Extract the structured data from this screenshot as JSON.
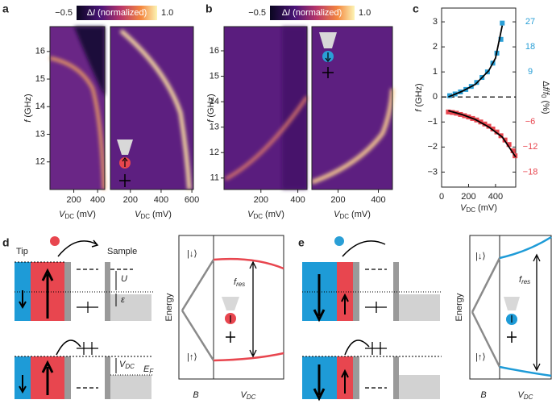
{
  "panel_a": {
    "label": "a",
    "cbar_min": "−0.5",
    "cbar_title": {
      "pre": "Δ",
      "var": "I",
      "rest": " (normalized)"
    },
    "cbar_max": "1.0",
    "ylabel": {
      "var": "f",
      "rest": " (GHz)"
    },
    "ylim": [
      11.0,
      16.9
    ],
    "yticks": [
      12,
      13,
      14,
      15,
      16
    ],
    "left_xlim": [
      0,
      460
    ],
    "left_xticks": [
      200,
      400
    ],
    "right_xlim": [
      70,
      610
    ],
    "right_xticks": [
      200,
      400,
      600
    ],
    "xlabel": {
      "var": "V",
      "sub": "DC",
      "rest": " (mV)"
    }
  },
  "panel_b": {
    "label": "b",
    "cbar_min": "−0.5",
    "cbar_title": {
      "pre": "Δ",
      "var": "I",
      "rest": " (normalized)"
    },
    "cbar_max": "1.0",
    "ylim": [
      10.55,
      16.95
    ],
    "yticks": [
      11,
      12,
      13,
      14,
      15,
      16
    ],
    "left_xlim": [
      0,
      450
    ],
    "left_xticks": [
      200,
      400
    ],
    "right_xlim": [
      70,
      470
    ],
    "right_xticks": [
      200,
      400
    ],
    "xlabel": {
      "var": "V",
      "sub": "DC",
      "rest": " (mV)"
    }
  },
  "chart_data": {
    "type": "scatter",
    "label": "c",
    "ylabel": {
      "var": "f",
      "rest": " (GHz)"
    },
    "xlabel": {
      "var": "V",
      "sub": "DC",
      "rest": " (mV)"
    },
    "y2label": {
      "pre": "Δ",
      "var1": "f",
      "slash": "/",
      "var2": "f",
      "sub": "0",
      "rest": " (%)"
    },
    "xlim": [
      0,
      550
    ],
    "xticks": [
      0,
      200,
      400
    ],
    "ylim": [
      -3.6,
      3.55
    ],
    "yticks": [
      {
        "value": -3,
        "label": "−3"
      },
      {
        "value": -2,
        "label": "−2"
      },
      {
        "value": -1,
        "label": "−1"
      },
      0,
      1,
      2,
      3
    ],
    "y2ticks": [
      27,
      18,
      9,
      {
        "value": -6,
        "label": "−6"
      },
      {
        "value": -12,
        "label": "−12"
      },
      {
        "value": -18,
        "label": "−18"
      }
    ],
    "y2ticks_at": [
      3,
      2,
      1,
      -1,
      -2,
      -3
    ],
    "y2tick_colors": [
      "#2a9fd6",
      "#2a9fd6",
      "#2a9fd6",
      "#e8464f",
      "#e8464f",
      "#e8464f"
    ],
    "series": [
      {
        "style": "marker",
        "color": "#2a9fd6",
        "x": [
          60,
          100,
          140,
          180,
          220,
          260,
          300,
          340,
          380,
          410,
          440,
          450
        ],
        "values": [
          0.05,
          0.12,
          0.2,
          0.3,
          0.42,
          0.58,
          0.78,
          1.0,
          1.35,
          1.75,
          2.3,
          2.95
        ]
      },
      {
        "style": "marker",
        "color": "#e8464f",
        "x": [
          50,
          80,
          110,
          140,
          170,
          200,
          230,
          260,
          290,
          320,
          350,
          380,
          410,
          440,
          470,
          500,
          530,
          545
        ],
        "values": [
          -0.6,
          -0.62,
          -0.65,
          -0.7,
          -0.75,
          -0.8,
          -0.86,
          -0.92,
          -1.0,
          -1.08,
          -1.17,
          -1.28,
          -1.4,
          -1.55,
          -1.72,
          -1.9,
          -2.15,
          -2.35
        ]
      },
      {
        "style": "line",
        "color": "#000000",
        "x": [
          50,
          150,
          250,
          350,
          400,
          450
        ],
        "values": [
          0.0,
          0.22,
          0.5,
          1.05,
          1.55,
          2.85
        ]
      },
      {
        "style": "line",
        "color": "#000000",
        "x": [
          50,
          150,
          250,
          350,
          450,
          550
        ],
        "values": [
          -0.55,
          -0.7,
          -0.9,
          -1.2,
          -1.6,
          -2.4
        ]
      }
    ]
  },
  "panel_d": {
    "label": "d",
    "tip": "Tip",
    "sample": "Sample",
    "u": "U",
    "eps": "ε",
    "vdc": {
      "var": "V",
      "sub": "DC"
    },
    "ef": {
      "var": "E",
      "sub": "F"
    },
    "state_down": "|↓⟩",
    "state_up": "|↑⟩",
    "fres": {
      "var": "f",
      "sub": "res"
    },
    "energy": "Energy",
    "b": "B",
    "xvdc": {
      "var": "V",
      "sub": "DC"
    }
  },
  "panel_e": {
    "label": "e",
    "state_down": "|↓⟩",
    "state_up": "|↑⟩",
    "fres": {
      "var": "f",
      "sub": "res"
    },
    "energy": "Energy",
    "b": "B",
    "xvdc": {
      "var": "V",
      "sub": "DC"
    }
  }
}
